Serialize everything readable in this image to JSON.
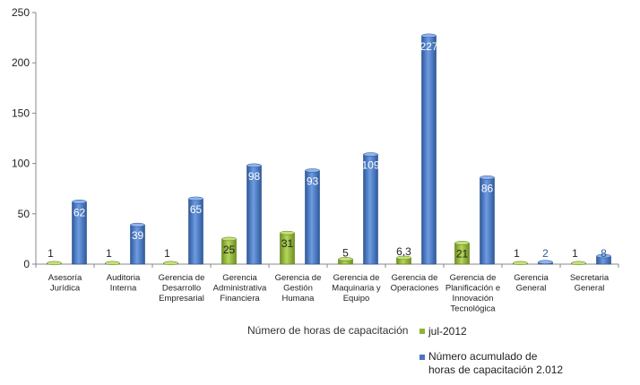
{
  "chart_data": {
    "type": "bar",
    "title": "",
    "xlabel": "",
    "ylabel": "",
    "ylim": [
      0,
      250
    ],
    "yticks": [
      0,
      50,
      100,
      150,
      200,
      250
    ],
    "grid": false,
    "legend_position": "bottom",
    "legend_title": "Número de horas de capacitación",
    "categories": [
      [
        "Asesoría",
        "Jurídica"
      ],
      [
        "Auditoria",
        "Interna"
      ],
      [
        "Gerencia de",
        "Desarrollo",
        "Empresarial"
      ],
      [
        "Gerencia",
        "Administrativa",
        "Financiera"
      ],
      [
        "Gerencia de",
        "Gestión",
        "Humana"
      ],
      [
        "Gerencia de",
        "Maquinaria y",
        "Equipo"
      ],
      [
        "Gerencia de",
        "Operaciones"
      ],
      [
        "Gerencia de",
        "Planificación e",
        "Innovación",
        "Tecnológica"
      ],
      [
        "Gerencia",
        "General"
      ],
      [
        "Secretaria",
        "General"
      ]
    ],
    "series": [
      {
        "name": "jul-2012",
        "color": "#8db531",
        "values": [
          1,
          1,
          1,
          25,
          31,
          5,
          6.3,
          21,
          1,
          1
        ],
        "labels": [
          "1",
          "1",
          "1",
          "25",
          "31",
          "5",
          "6,3",
          "21",
          "1",
          "1"
        ]
      },
      {
        "name": [
          "Número acumulado de",
          "horas de capacitación 2.012"
        ],
        "color": "#4677c0",
        "values": [
          62,
          39,
          65,
          98,
          93,
          109,
          227,
          86,
          2,
          8
        ],
        "labels": [
          "62",
          "39",
          "65",
          "98",
          "93",
          "109",
          "227",
          "86",
          "2",
          "8"
        ]
      }
    ]
  }
}
